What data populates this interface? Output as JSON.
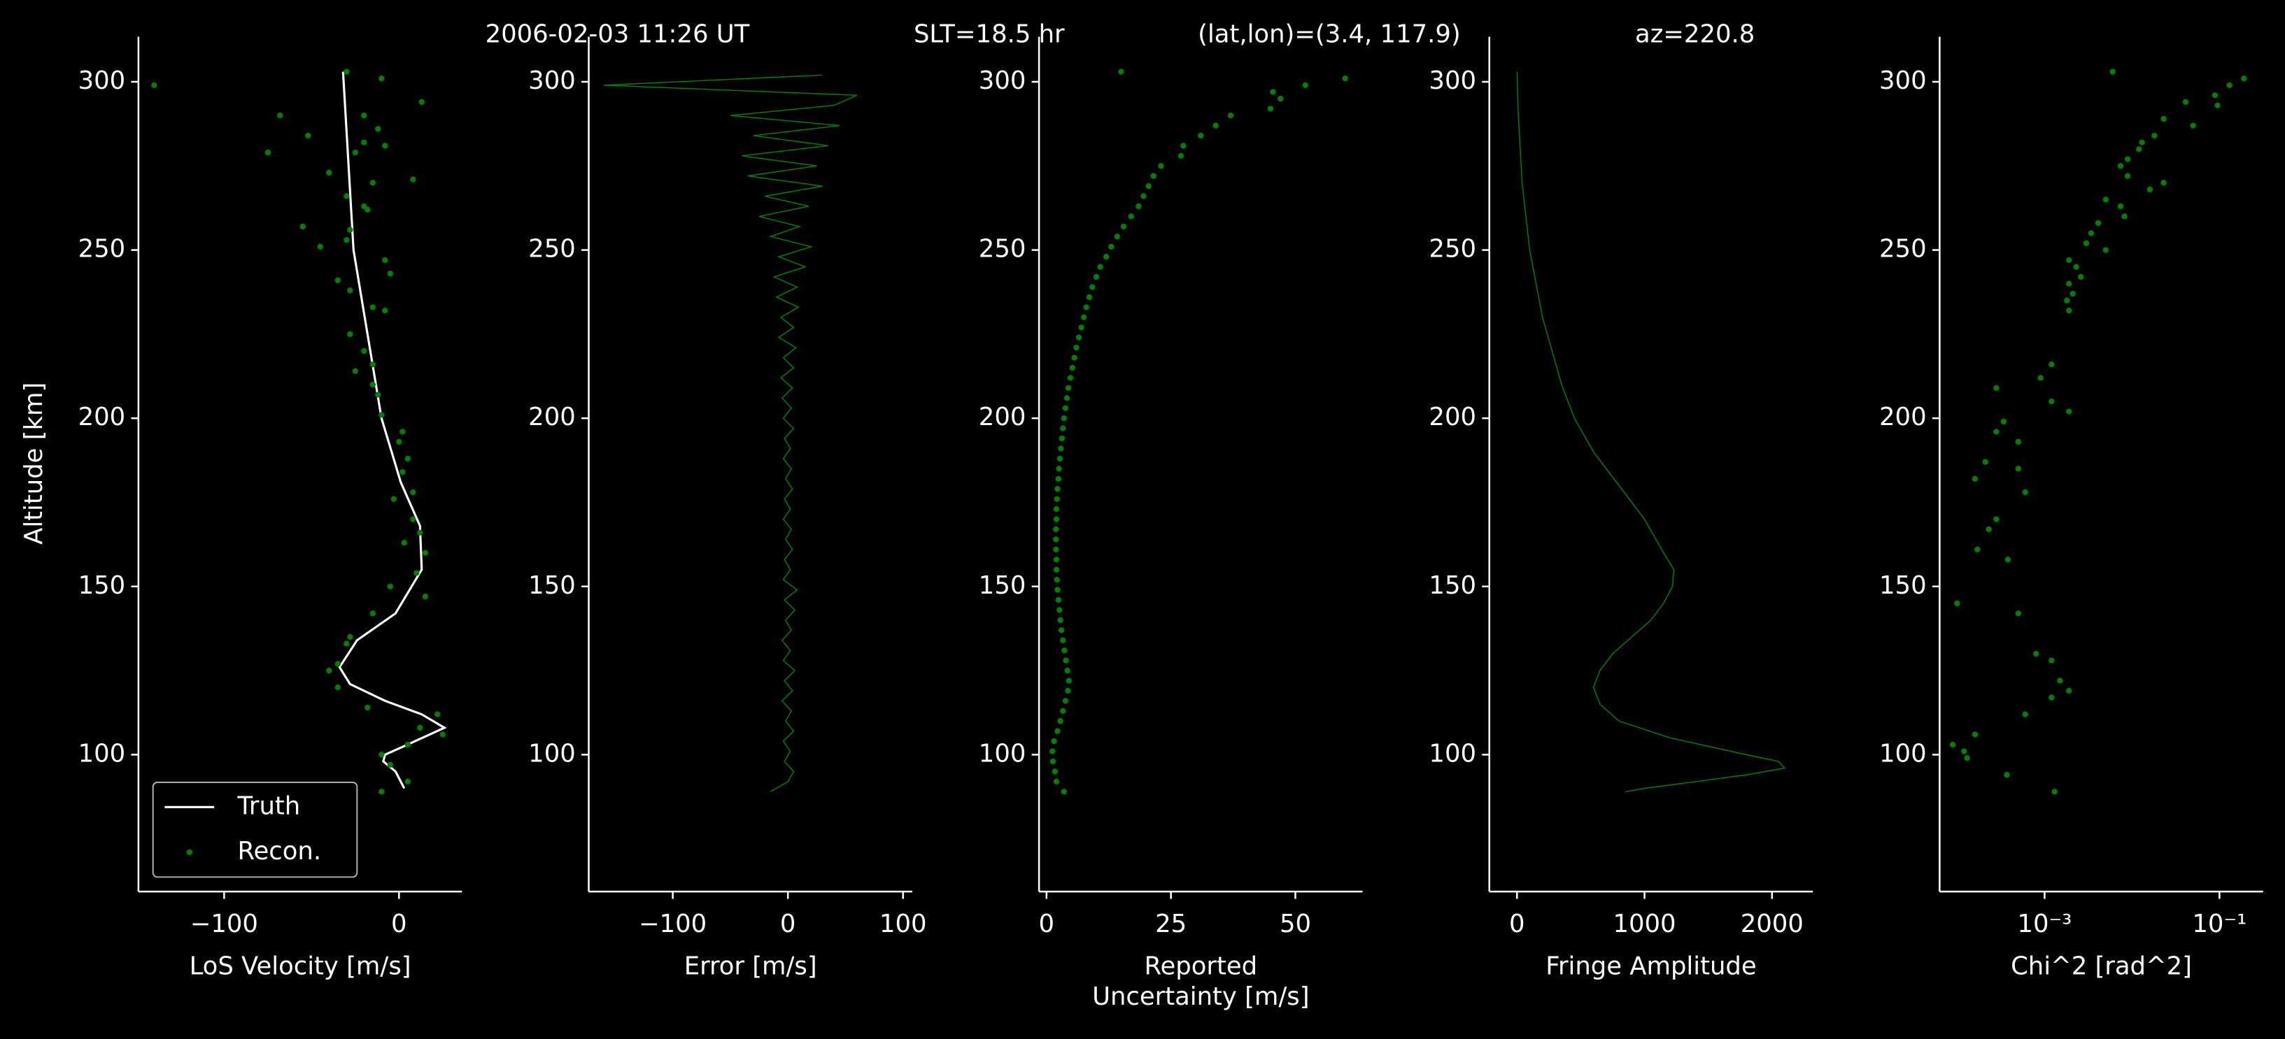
{
  "chart_data": [
    {
      "type": "line",
      "title": [
        "2006-02-03 11:26 UT",
        "SLT=18.5 hr",
        "(lat,lon)=(3.4, 117.9)",
        "az=220.8"
      ],
      "ylabel": "Altitude [km]",
      "xlabel": [
        "LoS Velocity [m/s]"
      ],
      "xlim": [
        -149,
        36
      ],
      "xticks": [
        {
          "value": -100,
          "label": "−100"
        },
        0
      ],
      "ylim": [
        59.3,
        313.4
      ],
      "yticks": [
        100,
        150,
        200,
        250,
        300
      ],
      "legend": "lower left",
      "series": [
        {
          "name": "Truth",
          "type": "line",
          "color": "#ffffff",
          "x": [
            -32,
            -26,
            -10,
            1,
            12,
            13,
            -2,
            -24,
            -34,
            -28,
            -8,
            13,
            26,
            5,
            -8,
            -9,
            -2,
            3
          ],
          "y": [
            303,
            250,
            200,
            181,
            168,
            155,
            142,
            134,
            126,
            121,
            116,
            112,
            108,
            103,
            100,
            98,
            95,
            90
          ]
        },
        {
          "name": "Recon.",
          "type": "scatter",
          "color": "#008000",
          "x": [
            -140,
            -30,
            -10,
            -68,
            -20,
            13,
            -12,
            -52,
            -20,
            -75,
            -25,
            -8,
            -40,
            -15,
            8,
            -30,
            -20,
            -18,
            -55,
            -28,
            -45,
            -8,
            -30,
            -35,
            -5,
            -28,
            -15,
            -8,
            -28,
            -20,
            -15,
            -25,
            -15,
            -12,
            -10,
            2,
            0,
            5,
            2,
            8,
            -3,
            8,
            12,
            3,
            15,
            10,
            15,
            -5,
            -15,
            -28,
            -30,
            -35,
            -40,
            -35,
            -18,
            12,
            22,
            25,
            5,
            -10,
            -5,
            5,
            -10
          ],
          "y": [
            299,
            303,
            301,
            290,
            290,
            294,
            286,
            284,
            282,
            279,
            279,
            281,
            273,
            270,
            271,
            266,
            263,
            262,
            257,
            256,
            251,
            247,
            253,
            241,
            243,
            238,
            233,
            232,
            225,
            220,
            216,
            214,
            210,
            207,
            201,
            196,
            193,
            188,
            184,
            178,
            176,
            170,
            166,
            163,
            160,
            154,
            147,
            150,
            142,
            135,
            133,
            127,
            125,
            120,
            114,
            108,
            112,
            106,
            103,
            100,
            97,
            92,
            89
          ]
        }
      ]
    },
    {
      "type": "line",
      "xlabel": [
        "Error [m/s]"
      ],
      "xlim": [
        -173,
        108
      ],
      "xticks": [
        {
          "value": -100,
          "label": "−100"
        },
        0,
        100
      ],
      "ylim": [
        59.3,
        313.4
      ],
      "yticks": [
        100,
        150,
        200,
        250,
        300
      ],
      "series": [
        {
          "color": "#008000",
          "x": [
            -15,
            0,
            5,
            -3,
            2,
            -4,
            5,
            -2,
            3,
            -5,
            4,
            -3,
            6,
            -4,
            2,
            -5,
            3,
            -2,
            6,
            -3,
            8,
            -4,
            2,
            -3,
            4,
            -2,
            3,
            -4,
            2,
            -3,
            4,
            -2,
            3,
            -4,
            2,
            -3,
            5,
            -4,
            3,
            -5,
            4,
            -6,
            5,
            -4,
            7,
            -8,
            5,
            -6,
            9,
            -10,
            8,
            -12,
            15,
            -8,
            20,
            -15,
            10,
            -25,
            18,
            -20,
            30,
            -35,
            25,
            -40,
            35,
            -30,
            45,
            -50,
            40,
            60,
            -160,
            30
          ],
          "y": [
            89,
            92,
            95,
            98,
            101,
            104,
            107,
            110,
            113,
            116,
            119,
            122,
            125,
            128,
            131,
            134,
            137,
            140,
            143,
            146,
            149,
            152,
            155,
            158,
            161,
            164,
            167,
            170,
            173,
            176,
            179,
            182,
            185,
            188,
            191,
            194,
            197,
            200,
            203,
            206,
            209,
            212,
            215,
            218,
            221,
            224,
            227,
            230,
            233,
            236,
            239,
            242,
            245,
            248,
            251,
            254,
            257,
            260,
            263,
            266,
            269,
            272,
            275,
            278,
            281,
            284,
            287,
            290,
            293,
            296,
            299,
            302
          ]
        }
      ]
    },
    {
      "type": "scatter",
      "xlabel": [
        "Reported",
        "Uncertainty [m/s]"
      ],
      "xlim": [
        -1.5,
        63.5
      ],
      "xticks": [
        0,
        25,
        50
      ],
      "ylim": [
        59.3,
        313.4
      ],
      "yticks": [
        100,
        150,
        200,
        250,
        300
      ],
      "series": [
        {
          "color": "#008000",
          "x": [
            3.5,
            2,
            1.7,
            1.3,
            1.2,
            1.5,
            2.2,
            2.8,
            3.3,
            3.8,
            4.3,
            4.5,
            4.2,
            3.9,
            3.6,
            3.3,
            3,
            2.8,
            2.6,
            2.4,
            2.2,
            2.1,
            2,
            2,
            1.9,
            1.9,
            1.9,
            2,
            2,
            2.1,
            2.2,
            2.4,
            2.5,
            2.7,
            2.9,
            3.1,
            3.3,
            3.5,
            3.8,
            4.1,
            4.4,
            4.8,
            5.2,
            5.6,
            6,
            6.5,
            7,
            7.5,
            8,
            8.6,
            9.2,
            10,
            10.8,
            12,
            13,
            14.2,
            15.5,
            17,
            18.5,
            19.5,
            20.5,
            21.5,
            23,
            27,
            27.5,
            31,
            34,
            37,
            45,
            47,
            45.5,
            52,
            60,
            15
          ],
          "y": [
            89,
            92,
            95,
            98,
            101,
            104,
            107,
            110,
            113,
            116,
            119,
            122,
            125,
            128,
            131,
            134,
            137,
            140,
            143,
            146,
            149,
            152,
            155,
            158,
            161,
            164,
            167,
            170,
            173,
            176,
            179,
            182,
            185,
            188,
            191,
            194,
            197,
            200,
            203,
            206,
            209,
            212,
            215,
            218,
            221,
            224,
            227,
            230,
            233,
            236,
            239,
            242,
            245,
            248,
            251,
            254,
            257,
            260,
            263,
            266,
            269,
            272,
            275,
            278,
            281,
            284,
            287,
            290,
            292,
            295,
            297,
            299,
            301,
            303
          ]
        }
      ]
    },
    {
      "type": "line",
      "xlabel": [
        "Fringe Amplitude"
      ],
      "xlim": [
        -217,
        2320
      ],
      "xticks": [
        0,
        1000,
        2000
      ],
      "ylim": [
        59.3,
        313.4
      ],
      "yticks": [
        100,
        150,
        200,
        250,
        300
      ],
      "series": [
        {
          "color": "#008000",
          "x": [
            0,
            10,
            40,
            100,
            200,
            350,
            450,
            600,
            800,
            1000,
            1150,
            1230,
            1220,
            1150,
            1050,
            900,
            750,
            650,
            600,
            650,
            800,
            1200,
            1800,
            2050,
            2100,
            1800,
            1400,
            1000,
            850
          ],
          "y": [
            303,
            290,
            270,
            250,
            230,
            210,
            200,
            190,
            180,
            170,
            160,
            155,
            150,
            145,
            140,
            135,
            130,
            125,
            120,
            115,
            110,
            105,
            100,
            98,
            96,
            94,
            92,
            90,
            89
          ]
        }
      ]
    },
    {
      "type": "scatter",
      "xlabel": [
        "Chi^2 [rad^2]"
      ],
      "xscale": "log",
      "xlim": [
        6.3e-05,
        0.316
      ],
      "xticks": [
        {
          "value": 0.001,
          "label": "10⁻³"
        },
        {
          "value": 0.1,
          "label": "10⁻¹"
        }
      ],
      "ylim": [
        59.3,
        313.4
      ],
      "yticks": [
        100,
        150,
        200,
        250,
        300
      ],
      "series": [
        {
          "color": "#008000",
          "x": [
            0.006,
            0.19,
            0.13,
            0.089,
            0.041,
            0.095,
            0.023,
            0.05,
            0.018,
            0.013,
            0.012,
            0.0089,
            0.0074,
            0.0089,
            0.023,
            0.016,
            0.005,
            0.0074,
            0.0082,
            0.0041,
            0.0034,
            0.003,
            0.005,
            0.0019,
            0.0023,
            0.0026,
            0.0019,
            0.0021,
            0.0018,
            0.0019,
            0.0012,
            0.0009,
            0.00028,
            0.0012,
            0.0019,
            0.00034,
            0.00028,
            0.0005,
            0.00021,
            0.0005,
            0.00016,
            0.0006,
            0.00028,
            0.00023,
            0.00017,
            0.00038,
            0.0001,
            0.0005,
            0.0008,
            0.0012,
            0.0015,
            0.0019,
            0.0012,
            0.0006,
            0.00016,
            8.9e-05,
            0.00012,
            0.00013,
            0.00037,
            0.0013
          ],
          "y": [
            303,
            301,
            299,
            296,
            294,
            293,
            289,
            287,
            284,
            282,
            280,
            277,
            275,
            272,
            270,
            268,
            265,
            263,
            260,
            258,
            255,
            252,
            250,
            247,
            245,
            242,
            240,
            237,
            235,
            232,
            216,
            212,
            209,
            205,
            202,
            199,
            196,
            193,
            187,
            185,
            182,
            178,
            170,
            167,
            161,
            158,
            145,
            142,
            130,
            128,
            122,
            119,
            117,
            112,
            106,
            103,
            101,
            99,
            94,
            89
          ]
        }
      ]
    }
  ]
}
